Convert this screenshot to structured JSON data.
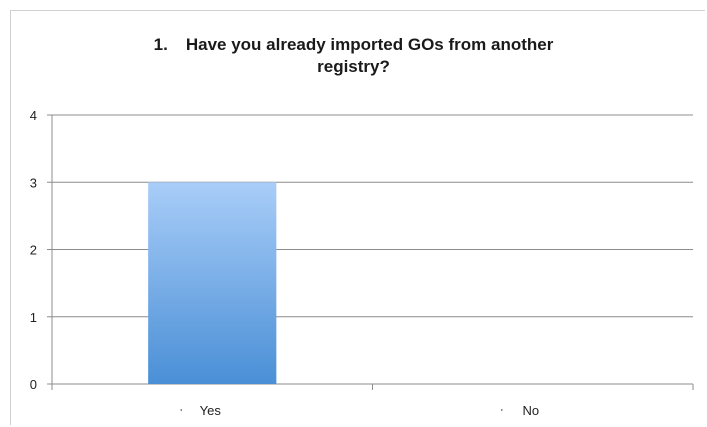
{
  "chart_data": {
    "type": "bar",
    "title_number": "1.",
    "title_line1": "Have you already imported GOs from another",
    "title_line2": "registry?",
    "categories": [
      "Yes",
      "No"
    ],
    "values": [
      3,
      0
    ],
    "ylim": [
      0,
      4
    ],
    "yticks": [
      0,
      1,
      2,
      3,
      4
    ],
    "grid": true,
    "legend": "none",
    "colors": {
      "bar_top": "#a9cdf8",
      "bar_bottom": "#4a8fd6",
      "grid": "#8c8c8c"
    }
  }
}
